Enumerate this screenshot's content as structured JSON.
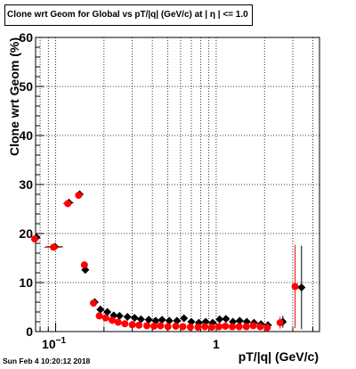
{
  "chart_data": {
    "type": "scatter",
    "title": "Clone wrt Geom for Global vs pT/|q| (GeV/c) at |   η | <= 1.0",
    "xlabel": "pT/|q| (GeV/c)",
    "ylabel": "Clone wrt Geom (%)",
    "xscale": "log",
    "xlim": [
      0.075,
      4.4
    ],
    "ylim": [
      0,
      60
    ],
    "grid": true,
    "x_tick_labels": [
      {
        "value": 0.1,
        "base": "10",
        "exp": "−1"
      },
      {
        "value": 1,
        "base": "1",
        "exp": ""
      }
    ],
    "y_tick_labels": [
      "0",
      "10",
      "20",
      "30",
      "40",
      "50",
      "60"
    ],
    "series": [
      {
        "color": "#000000",
        "marker": "diamond",
        "points": [
          {
            "x": 0.076,
            "y": 19.2,
            "xerr": [
              0.0025,
              0.0025
            ],
            "yerr": 0.5
          },
          {
            "x": 0.099,
            "y": 17.3,
            "xerr": [
              0.012,
              0.012
            ],
            "yerr": 0.5
          },
          {
            "x": 0.121,
            "y": 26.3,
            "xerr": [
              0.008,
              0.008
            ],
            "yerr": 0.5
          },
          {
            "x": 0.141,
            "y": 28.0,
            "xerr": [
              0.005,
              0.005
            ],
            "yerr": 0.5
          },
          {
            "x": 0.153,
            "y": 12.6,
            "yerr": 0.5
          },
          {
            "x": 0.175,
            "y": 6.0,
            "yerr": 0.4
          },
          {
            "x": 0.19,
            "y": 4.5,
            "yerr": 0.3
          },
          {
            "x": 0.21,
            "y": 4.0,
            "yerr": 0.3
          },
          {
            "x": 0.23,
            "y": 3.3,
            "yerr": 0.3
          },
          {
            "x": 0.25,
            "y": 3.2,
            "yerr": 0.3
          },
          {
            "x": 0.28,
            "y": 3.0,
            "yerr": 0.3
          },
          {
            "x": 0.31,
            "y": 2.8,
            "yerr": 0.3
          },
          {
            "x": 0.34,
            "y": 2.5,
            "yerr": 0.3
          },
          {
            "x": 0.38,
            "y": 2.4,
            "yerr": 0.3
          },
          {
            "x": 0.42,
            "y": 2.2,
            "yerr": 0.3
          },
          {
            "x": 0.46,
            "y": 2.4,
            "yerr": 0.3
          },
          {
            "x": 0.51,
            "y": 2.2,
            "yerr": 0.3
          },
          {
            "x": 0.57,
            "y": 2.2,
            "yerr": 0.3
          },
          {
            "x": 0.63,
            "y": 2.7,
            "yerr": 0.3
          },
          {
            "x": 0.7,
            "y": 2.0,
            "yerr": 0.3
          },
          {
            "x": 0.78,
            "y": 1.8,
            "yerr": 0.3
          },
          {
            "x": 0.86,
            "y": 2.0,
            "yerr": 0.3
          },
          {
            "x": 0.95,
            "y": 1.8,
            "yerr": 0.3
          },
          {
            "x": 1.05,
            "y": 2.5,
            "yerr": 0.3
          },
          {
            "x": 1.15,
            "y": 2.6,
            "yerr": 0.4
          },
          {
            "x": 1.27,
            "y": 2.0,
            "yerr": 0.4
          },
          {
            "x": 1.4,
            "y": 2.2,
            "yerr": 0.4
          },
          {
            "x": 1.55,
            "y": 2.0,
            "yerr": 0.5
          },
          {
            "x": 1.72,
            "y": 1.8,
            "yerr": 0.6
          },
          {
            "x": 1.9,
            "y": 1.5,
            "yerr": 0.7
          },
          {
            "x": 2.1,
            "y": 1.3,
            "yerr": 0.8
          },
          {
            "x": 2.6,
            "y": 2.0,
            "yerr": 1.2
          },
          {
            "x": 3.4,
            "y": 9.0,
            "yerr": 8.5
          }
        ]
      },
      {
        "color": "#ff0000",
        "marker": "circle",
        "points": [
          {
            "x": 0.074,
            "y": 18.9,
            "xerr": [
              0.0025,
              0.0025
            ],
            "yerr": 0.5
          },
          {
            "x": 0.097,
            "y": 17.2,
            "xerr": [
              0.012,
              0.012
            ],
            "yerr": 0.5
          },
          {
            "x": 0.119,
            "y": 26.1,
            "xerr": [
              0.008,
              0.008
            ],
            "yerr": 0.5
          },
          {
            "x": 0.139,
            "y": 27.8,
            "xerr": [
              0.005,
              0.005
            ],
            "yerr": 0.5
          },
          {
            "x": 0.151,
            "y": 13.6,
            "yerr": 0.5
          },
          {
            "x": 0.172,
            "y": 5.8,
            "yerr": 0.4
          },
          {
            "x": 0.187,
            "y": 3.2,
            "yerr": 0.3
          },
          {
            "x": 0.205,
            "y": 2.8,
            "yerr": 0.3
          },
          {
            "x": 0.225,
            "y": 2.3,
            "yerr": 0.3
          },
          {
            "x": 0.245,
            "y": 1.9,
            "yerr": 0.3
          },
          {
            "x": 0.27,
            "y": 1.6,
            "yerr": 0.3
          },
          {
            "x": 0.3,
            "y": 1.4,
            "yerr": 0.3
          },
          {
            "x": 0.33,
            "y": 1.3,
            "yerr": 0.3
          },
          {
            "x": 0.37,
            "y": 1.2,
            "yerr": 0.3
          },
          {
            "x": 0.41,
            "y": 1.1,
            "yerr": 0.3
          },
          {
            "x": 0.45,
            "y": 1.2,
            "yerr": 0.3
          },
          {
            "x": 0.5,
            "y": 1.0,
            "yerr": 0.3
          },
          {
            "x": 0.56,
            "y": 1.1,
            "yerr": 0.3
          },
          {
            "x": 0.62,
            "y": 1.0,
            "yerr": 0.3
          },
          {
            "x": 0.69,
            "y": 0.9,
            "yerr": 0.3
          },
          {
            "x": 0.77,
            "y": 0.9,
            "yerr": 0.3
          },
          {
            "x": 0.85,
            "y": 1.0,
            "yerr": 0.3
          },
          {
            "x": 0.94,
            "y": 0.9,
            "yerr": 0.3
          },
          {
            "x": 1.04,
            "y": 1.0,
            "yerr": 0.3
          },
          {
            "x": 1.14,
            "y": 1.1,
            "yerr": 0.4
          },
          {
            "x": 1.26,
            "y": 1.0,
            "yerr": 0.4
          },
          {
            "x": 1.39,
            "y": 1.0,
            "yerr": 0.4
          },
          {
            "x": 1.54,
            "y": 1.0,
            "yerr": 0.5
          },
          {
            "x": 1.7,
            "y": 1.2,
            "yerr": 0.6
          },
          {
            "x": 1.88,
            "y": 1.0,
            "yerr": 0.7
          },
          {
            "x": 2.08,
            "y": 0.8,
            "yerr": 0.8
          },
          {
            "x": 2.5,
            "y": 1.8,
            "yerr": 1.2
          },
          {
            "x": 3.1,
            "y": 9.2,
            "yerr": 8.5
          }
        ]
      }
    ]
  },
  "footer": {
    "timestamp": "Sun Feb  4 10:20:12 2018"
  }
}
